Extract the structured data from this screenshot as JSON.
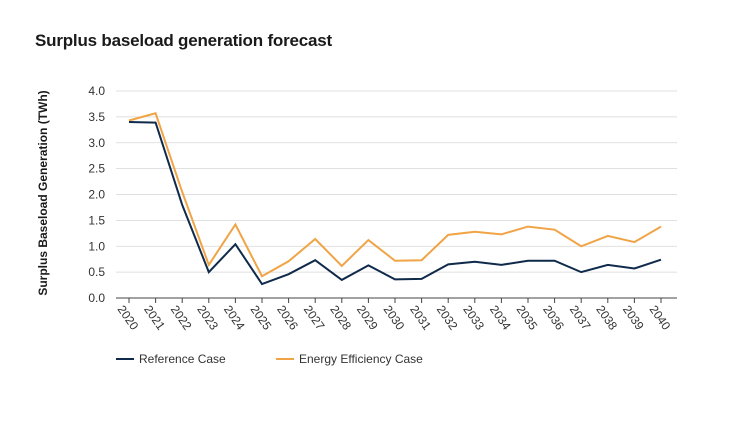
{
  "chart_data": {
    "type": "line",
    "title": "Surplus baseload generation forecast",
    "xlabel": "",
    "ylabel": "Surplus Baseload Generation (TWh)",
    "ylim": [
      0,
      4
    ],
    "yticks": [
      "0.0",
      "0.5",
      "1.0",
      "1.5",
      "2.0",
      "2.5",
      "3.0",
      "3.5",
      "4.0"
    ],
    "grid": "horizontal",
    "legend_position": "bottom",
    "x": [
      "2020",
      "2021",
      "2022",
      "2023",
      "2024",
      "2025",
      "2026",
      "2027",
      "2028",
      "2029",
      "2030",
      "2031",
      "2032",
      "2033",
      "2034",
      "2035",
      "2036",
      "2037",
      "2038",
      "2039",
      "2040"
    ],
    "series": [
      {
        "name": "Reference Case",
        "color": "#0f2a4a",
        "values": [
          3.4,
          3.39,
          1.8,
          0.5,
          1.04,
          0.27,
          0.46,
          0.73,
          0.35,
          0.63,
          0.36,
          0.37,
          0.65,
          0.7,
          0.64,
          0.72,
          0.72,
          0.5,
          0.64,
          0.57,
          0.74
        ]
      },
      {
        "name": "Energy Efficiency Case",
        "color": "#f0a446",
        "values": [
          3.43,
          3.57,
          2.05,
          0.64,
          1.42,
          0.42,
          0.71,
          1.14,
          0.62,
          1.12,
          0.72,
          0.73,
          1.22,
          1.28,
          1.23,
          1.38,
          1.32,
          1.0,
          1.2,
          1.08,
          1.38
        ]
      }
    ]
  }
}
